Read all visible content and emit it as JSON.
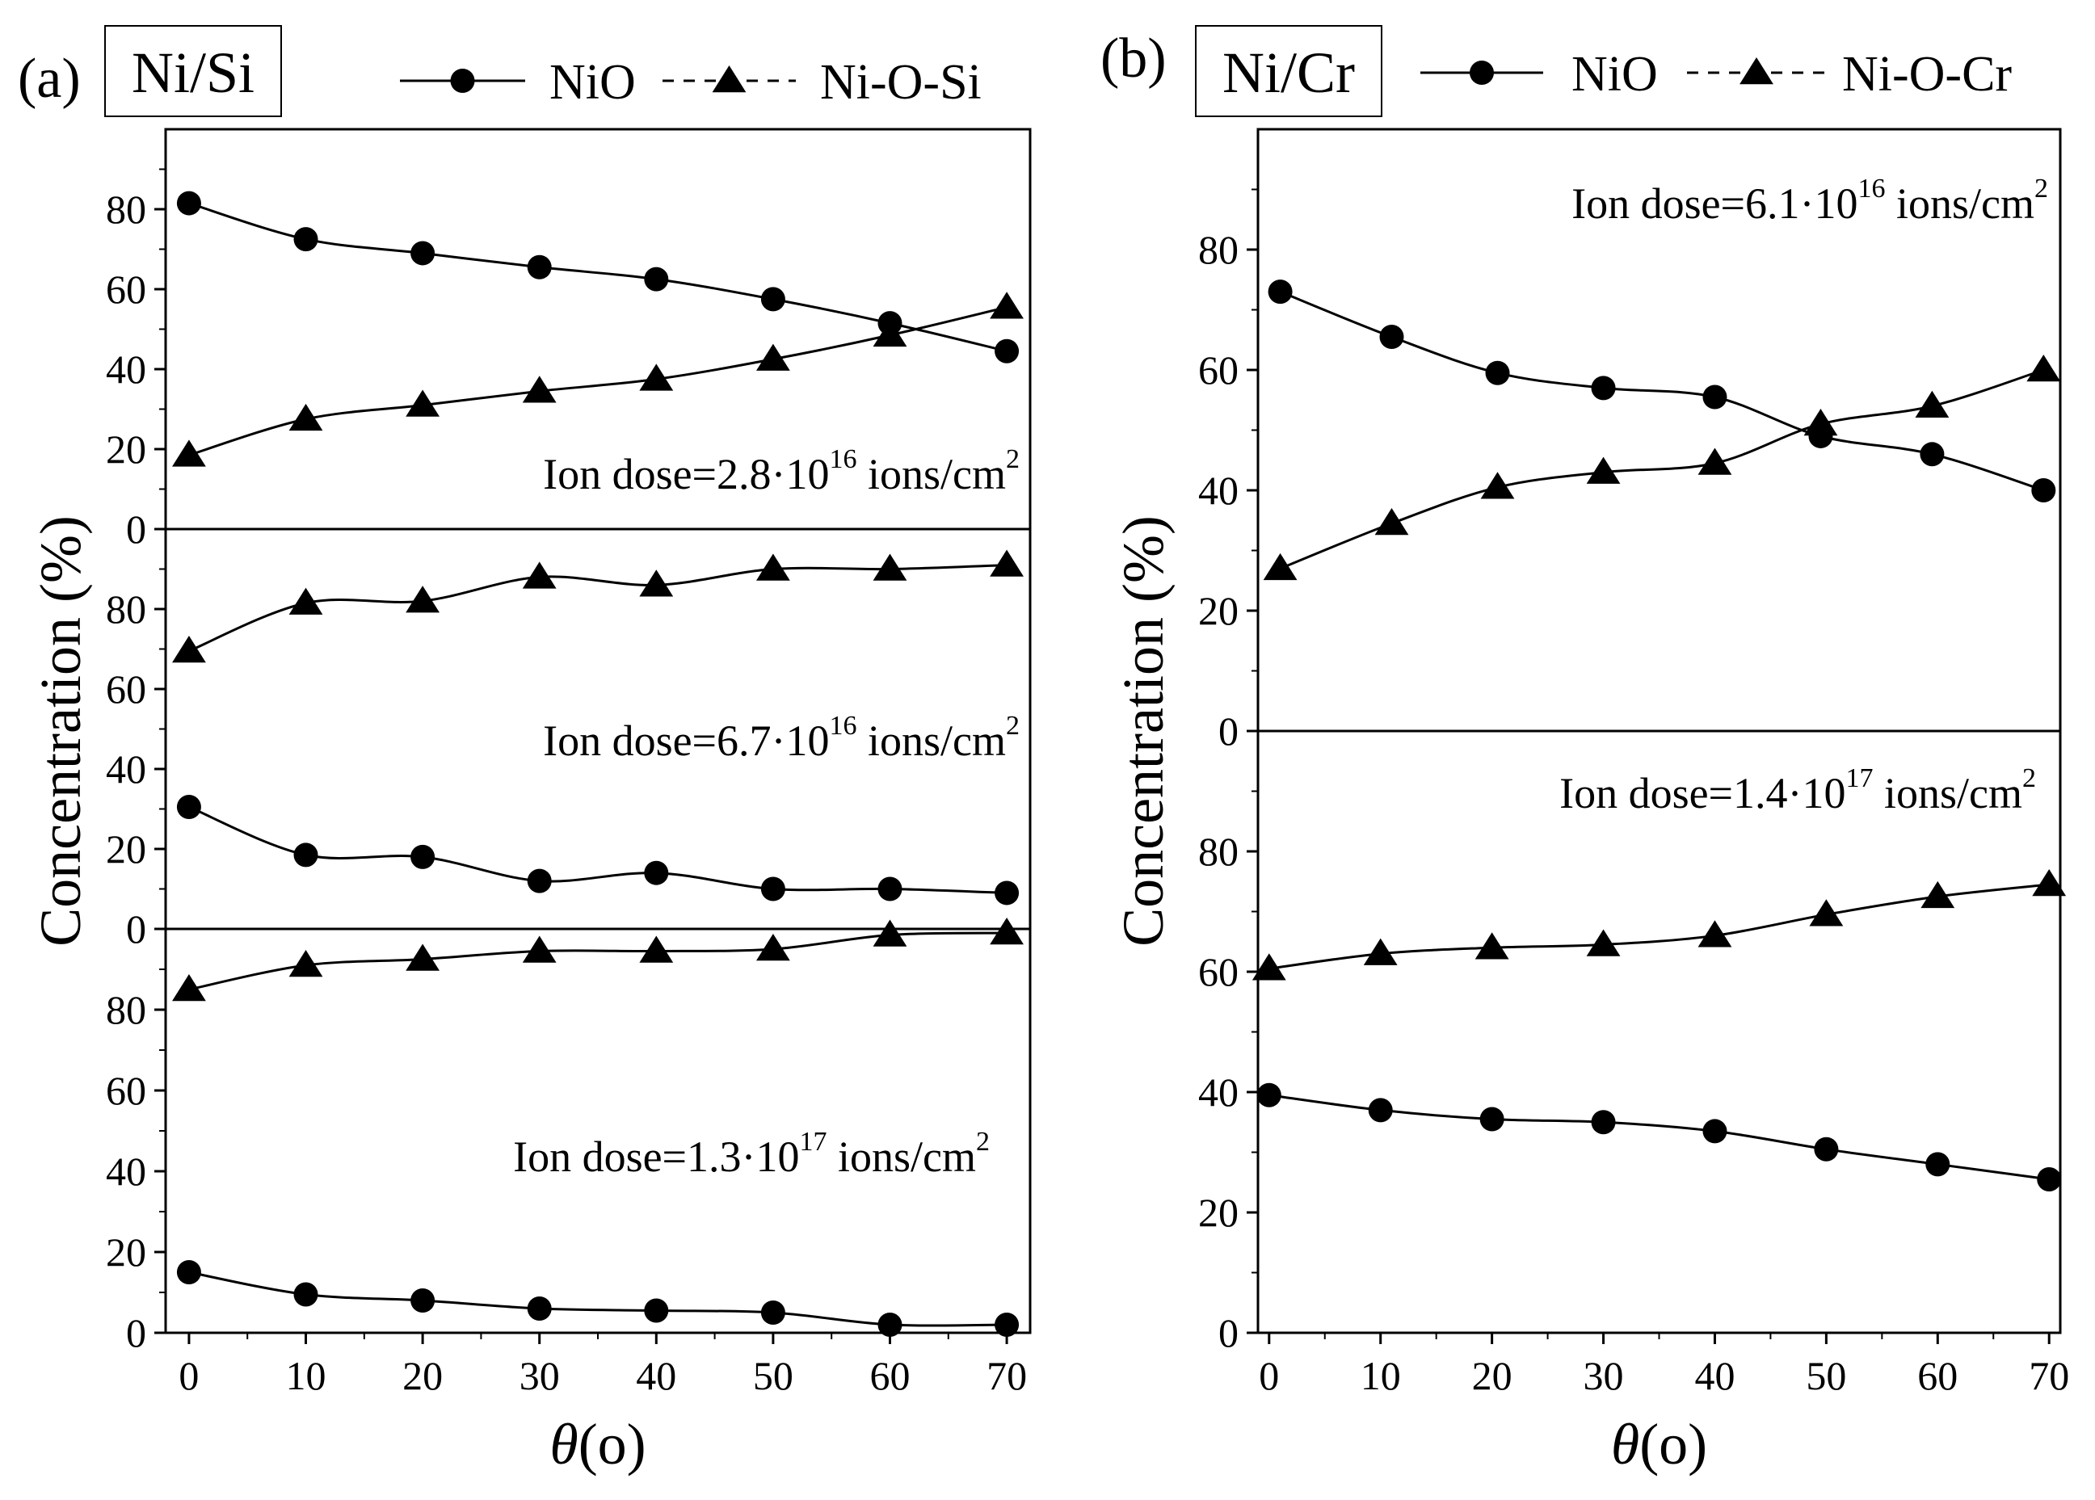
{
  "figure": {
    "axis_symbol": "θ",
    "axis_unit": "(o)",
    "ylabel": "Concentration (%)"
  },
  "chart_data": [
    {
      "type": "line",
      "panel": "(a)",
      "title": "Ni/Si",
      "xlabel": "θ (o)",
      "ylabel": "Concentration (%)",
      "xlim": [
        -2,
        72
      ],
      "xticks": [
        "0",
        "10",
        "20",
        "30",
        "40",
        "50",
        "60",
        "70"
      ],
      "legend": [
        {
          "name": "NiO",
          "marker": "circle",
          "line": "solid"
        },
        {
          "name": "Ni-O-Si",
          "marker": "triangle",
          "line": "dashed"
        }
      ],
      "subplots": [
        {
          "ylim": [
            0,
            100
          ],
          "yticks": [
            "0",
            "20",
            "40",
            "60",
            "80"
          ],
          "annotation": {
            "base": "Ion dose=2.8·10",
            "exp": "16",
            "unit": " ions/cm",
            "unit_exp": "2"
          },
          "x": [
            0,
            10,
            20,
            30,
            40,
            50,
            60,
            70
          ],
          "series": [
            {
              "name": "NiO",
              "marker": "circle",
              "values": [
                81.5,
                72.5,
                69,
                65.5,
                62.5,
                57.5,
                51.5,
                44.5
              ]
            },
            {
              "name": "Ni-O-Si",
              "marker": "triangle",
              "values": [
                18.5,
                27.5,
                31,
                34.5,
                37.5,
                42.5,
                48.5,
                55.5
              ]
            }
          ]
        },
        {
          "ylim": [
            0,
            100
          ],
          "yticks": [
            "0",
            "20",
            "40",
            "60",
            "80"
          ],
          "annotation": {
            "base": "Ion dose=6.7·10",
            "exp": "16",
            "unit": " ions/cm",
            "unit_exp": "2"
          },
          "x": [
            0,
            10,
            20,
            30,
            40,
            50,
            60,
            70
          ],
          "series": [
            {
              "name": "NiO",
              "marker": "circle",
              "values": [
                30.5,
                18.5,
                18,
                12,
                14,
                10,
                10,
                9
              ]
            },
            {
              "name": "Ni-O-Si",
              "marker": "triangle",
              "values": [
                69.5,
                81.5,
                82,
                88,
                86,
                90,
                90,
                91
              ]
            }
          ]
        },
        {
          "ylim": [
            0,
            100
          ],
          "yticks": [
            "0",
            "20",
            "40",
            "60",
            "80"
          ],
          "annotation": {
            "base": "Ion dose=1.3·10",
            "exp": "17",
            "unit": " ions/cm",
            "unit_exp": "2"
          },
          "x": [
            0,
            10,
            20,
            30,
            40,
            50,
            60,
            70
          ],
          "series": [
            {
              "name": "NiO",
              "marker": "circle",
              "values": [
                15,
                9.5,
                8,
                6,
                5.5,
                5,
                2,
                2
              ]
            },
            {
              "name": "Ni-O-Si",
              "marker": "triangle",
              "values": [
                85,
                91,
                92.5,
                94.5,
                94.5,
                95,
                98.5,
                99
              ]
            }
          ]
        }
      ]
    },
    {
      "type": "line",
      "panel": "(b)",
      "title": "Ni/Cr",
      "xlabel": "θ (o)",
      "ylabel": "Concentration (%)",
      "xlim": [
        -1,
        71
      ],
      "xticks": [
        "0",
        "10",
        "20",
        "30",
        "40",
        "50",
        "60",
        "70"
      ],
      "legend": [
        {
          "name": "NiO",
          "marker": "circle",
          "line": "solid"
        },
        {
          "name": "Ni-O-Cr",
          "marker": "triangle",
          "line": "dashed"
        }
      ],
      "subplots": [
        {
          "ylim": [
            0,
            100
          ],
          "yticks": [
            "0",
            "20",
            "40",
            "60",
            "80"
          ],
          "annotation": {
            "base": "Ion dose=6.1·10",
            "exp": "16",
            "unit": " ions/cm",
            "unit_exp": "2"
          },
          "x": [
            1,
            11,
            20.5,
            30,
            40,
            49.5,
            59.5,
            69.5
          ],
          "series": [
            {
              "name": "NiO",
              "marker": "circle",
              "values": [
                73,
                65.5,
                59.5,
                57,
                55.5,
                49,
                46,
                40
              ]
            },
            {
              "name": "Ni-O-Cr",
              "marker": "triangle",
              "values": [
                27,
                34.5,
                40.5,
                43,
                44.5,
                51,
                54,
                60
              ]
            }
          ]
        },
        {
          "ylim": [
            0,
            100
          ],
          "yticks": [
            "0",
            "20",
            "40",
            "60",
            "80"
          ],
          "annotation": {
            "base": "Ion dose=1.4·10",
            "exp": "17",
            "unit": " ions/cm",
            "unit_exp": "2"
          },
          "x": [
            0,
            10,
            20,
            30,
            40,
            50,
            60,
            70
          ],
          "series": [
            {
              "name": "NiO",
              "marker": "circle",
              "values": [
                39.5,
                37,
                35.5,
                35,
                33.5,
                30.5,
                28,
                25.5
              ]
            },
            {
              "name": "Ni-O-Cr",
              "marker": "triangle",
              "values": [
                60.5,
                63,
                64,
                64.5,
                66,
                69.5,
                72.5,
                74.5
              ]
            }
          ]
        }
      ]
    }
  ]
}
